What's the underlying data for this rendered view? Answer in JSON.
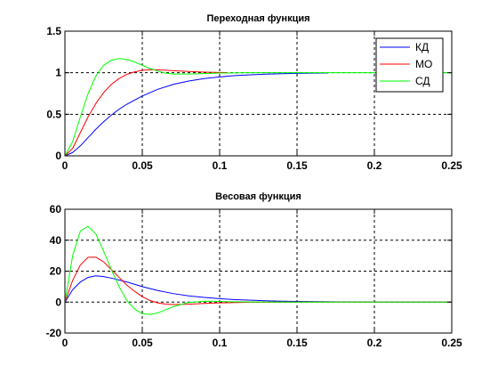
{
  "chart_data": [
    {
      "type": "line",
      "title": "Переходная функция",
      "xlabel": "",
      "ylabel": "",
      "xlim": [
        0,
        0.25
      ],
      "ylim": [
        0,
        1.5
      ],
      "xticks": [
        "0",
        "0.05",
        "0.1",
        "0.15",
        "0.2",
        "0.25"
      ],
      "yticks": [
        "0",
        "0.5",
        "1",
        "1.5"
      ],
      "grid": true,
      "legend_position": "top-right",
      "series": [
        {
          "name": "КД",
          "color": "#0000ff",
          "x": [
            0,
            0.005,
            0.01,
            0.015,
            0.02,
            0.025,
            0.03,
            0.035,
            0.04,
            0.045,
            0.05,
            0.06,
            0.07,
            0.08,
            0.09,
            0.1,
            0.11,
            0.12,
            0.13,
            0.14,
            0.15,
            0.16,
            0.17
          ],
          "y": [
            0,
            0.04,
            0.12,
            0.22,
            0.32,
            0.41,
            0.49,
            0.56,
            0.62,
            0.67,
            0.72,
            0.8,
            0.86,
            0.9,
            0.93,
            0.95,
            0.965,
            0.975,
            0.983,
            0.988,
            0.992,
            0.995,
            0.997
          ]
        },
        {
          "name": "МО",
          "color": "#ff0000",
          "x": [
            0,
            0.005,
            0.01,
            0.015,
            0.02,
            0.025,
            0.03,
            0.035,
            0.04,
            0.045,
            0.05,
            0.055,
            0.06,
            0.07,
            0.08,
            0.09,
            0.1,
            0.105
          ],
          "y": [
            0,
            0.09,
            0.28,
            0.47,
            0.63,
            0.76,
            0.86,
            0.93,
            0.98,
            1.01,
            1.03,
            1.035,
            1.035,
            1.025,
            1.015,
            1.007,
            1.003,
            1.001
          ]
        },
        {
          "name": "СД",
          "color": "#00ff00",
          "x": [
            0,
            0.005,
            0.01,
            0.015,
            0.02,
            0.025,
            0.03,
            0.035,
            0.04,
            0.045,
            0.05,
            0.055,
            0.06,
            0.065,
            0.07,
            0.08,
            0.09,
            0.1,
            0.12,
            0.15,
            0.2,
            0.25
          ],
          "y": [
            0,
            0.17,
            0.47,
            0.75,
            0.96,
            1.09,
            1.15,
            1.17,
            1.16,
            1.13,
            1.09,
            1.05,
            1.02,
            0.995,
            0.985,
            0.985,
            0.99,
            0.996,
            1.0,
            1.0,
            1.0,
            1.0
          ]
        }
      ]
    },
    {
      "type": "line",
      "title": "Весовая функция",
      "xlabel": "",
      "ylabel": "",
      "xlim": [
        0,
        0.25
      ],
      "ylim": [
        -20,
        60
      ],
      "xticks": [
        "0",
        "0.05",
        "0.1",
        "0.15",
        "0.2",
        "0.25"
      ],
      "yticks": [
        "-20",
        "0",
        "20",
        "40",
        "60"
      ],
      "grid": true,
      "series": [
        {
          "name": "",
          "color": "#0000ff",
          "x": [
            0,
            0.005,
            0.01,
            0.015,
            0.02,
            0.025,
            0.03,
            0.04,
            0.05,
            0.06,
            0.07,
            0.08,
            0.09,
            0.1,
            0.11,
            0.12,
            0.13,
            0.14,
            0.15,
            0.17,
            0.2,
            0.25
          ],
          "y": [
            0,
            8,
            13,
            16,
            17,
            16.5,
            15.5,
            13,
            10,
            7.5,
            5.5,
            4,
            3,
            2.2,
            1.6,
            1.2,
            0.9,
            0.6,
            0.4,
            0.2,
            0.1,
            0
          ]
        },
        {
          "name": "",
          "color": "#ff0000",
          "x": [
            0,
            0.005,
            0.01,
            0.015,
            0.02,
            0.025,
            0.03,
            0.035,
            0.04,
            0.045,
            0.05,
            0.055,
            0.06,
            0.065,
            0.07,
            0.08,
            0.09,
            0.1,
            0.12,
            0.15,
            0.2,
            0.25
          ],
          "y": [
            0,
            14,
            24,
            29,
            29,
            26,
            21,
            16,
            11,
            7,
            3.5,
            1,
            -0.5,
            -1.3,
            -1.6,
            -1.4,
            -0.9,
            -0.5,
            -0.1,
            0,
            0,
            0
          ]
        },
        {
          "name": "",
          "color": "#00ff00",
          "x": [
            0,
            0.005,
            0.01,
            0.015,
            0.02,
            0.025,
            0.03,
            0.035,
            0.04,
            0.045,
            0.05,
            0.055,
            0.06,
            0.065,
            0.07,
            0.075,
            0.08,
            0.09,
            0.1,
            0.11,
            0.12,
            0.15,
            0.2,
            0.25
          ],
          "y": [
            0,
            30,
            46,
            49,
            44,
            33,
            21,
            10,
            1,
            -4.5,
            -7.5,
            -8,
            -7,
            -5,
            -3,
            -1.5,
            -0.3,
            0.6,
            0.4,
            0.2,
            0.1,
            0,
            0,
            0
          ]
        }
      ]
    }
  ]
}
